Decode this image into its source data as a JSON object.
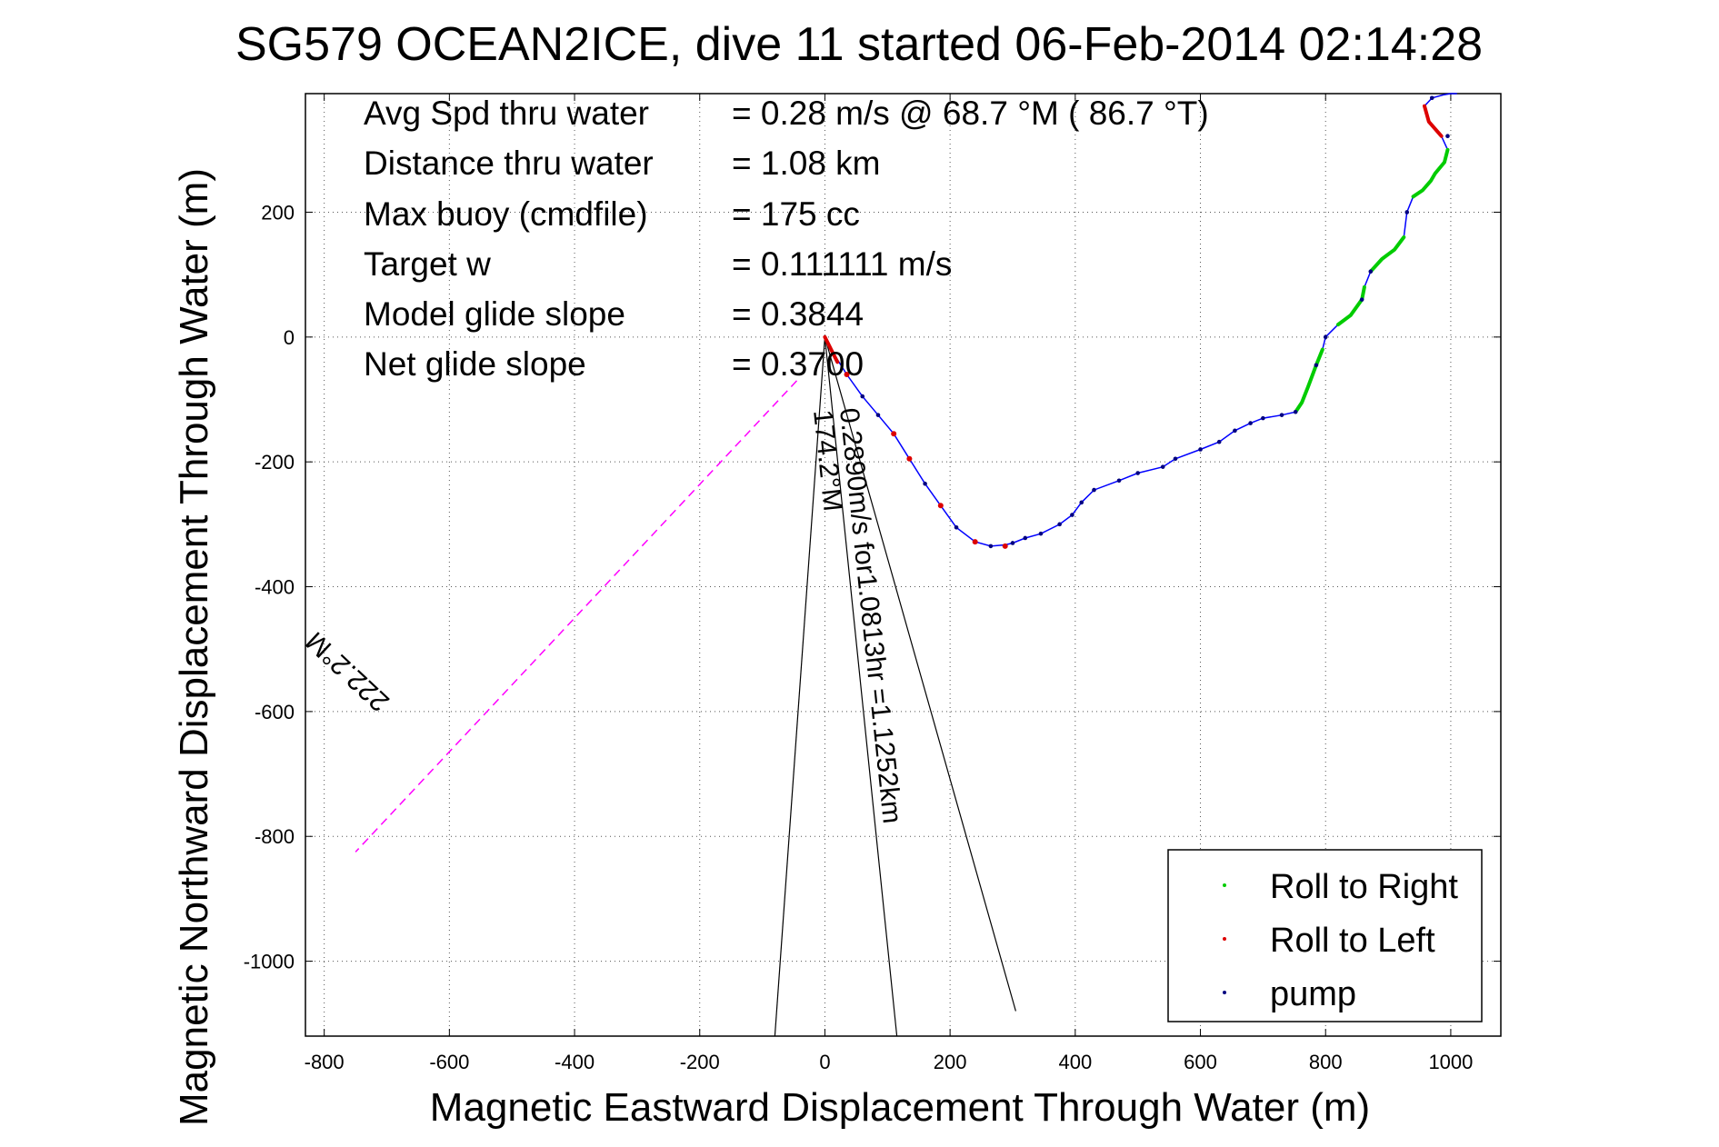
{
  "chart_data": {
    "type": "line",
    "title": "SG579 OCEAN2ICE, dive 11 started 06-Feb-2014 02:14:28",
    "xlabel": "Magnetic Eastward Displacement Through Water (m)",
    "ylabel": "Magnetic Northward Displacement Through Water (m)",
    "xlim": [
      -830,
      1080
    ],
    "ylim": [
      -1120,
      390
    ],
    "xticks": [
      -800,
      -600,
      -400,
      -200,
      0,
      200,
      400,
      600,
      800,
      1000
    ],
    "yticks": [
      -1000,
      -800,
      -600,
      -400,
      -200,
      0,
      200
    ],
    "grid": true,
    "legend_position": "bottom-right",
    "info_lines": [
      {
        "label": "Avg Spd thru water",
        "value": "=  0.28 m/s @  68.7 °M ( 86.7 °T)"
      },
      {
        "label": "Distance thru water",
        "value": "=  1.08 km"
      },
      {
        "label": "Max buoy (cmdfile)",
        "value": "= 175 cc"
      },
      {
        "label": "Target w",
        "value": "= 0.111111 m/s"
      },
      {
        "label": "Model glide slope",
        "value": "= 0.3844"
      },
      {
        "label": "Net glide slope",
        "value": "= 0.3700"
      }
    ],
    "annotations": {
      "heading_label": "222.2°M",
      "current_label": "0.2890m/s for1.0813hr =1.1252km",
      "current_heading_label": "174.2°M"
    },
    "track": {
      "name": "track",
      "color": "#0000ff",
      "x": [
        0,
        10,
        35,
        60,
        85,
        110,
        135,
        160,
        185,
        210,
        240,
        265,
        288,
        300,
        320,
        345,
        375,
        395,
        410,
        430,
        470,
        500,
        540,
        560,
        600,
        630,
        655,
        680,
        700,
        730,
        752,
        762,
        772,
        785,
        795,
        800,
        808,
        820,
        840,
        858,
        862,
        872,
        890,
        910,
        925,
        930,
        940,
        955,
        968,
        975,
        990,
        995,
        985,
        965,
        958,
        970,
        988,
        1000,
        1010
      ],
      "y": [
        0,
        -20,
        -60,
        -95,
        -125,
        -155,
        -195,
        -235,
        -270,
        -305,
        -328,
        -335,
        -333,
        -330,
        -322,
        -315,
        -300,
        -285,
        -265,
        -245,
        -230,
        -218,
        -208,
        -195,
        -180,
        -168,
        -150,
        -138,
        -130,
        -125,
        -120,
        -105,
        -80,
        -45,
        -20,
        0,
        8,
        20,
        35,
        60,
        80,
        105,
        125,
        140,
        160,
        200,
        225,
        235,
        250,
        262,
        280,
        300,
        322,
        345,
        370,
        383,
        388,
        390,
        390
      ]
    },
    "segments": [
      {
        "name": "Roll to Right",
        "color": "#00cc00",
        "x": [
          752,
          762,
          772,
          785,
          795
        ],
        "y": [
          -120,
          -105,
          -80,
          -45,
          -20
        ]
      },
      {
        "name": "Roll to Right",
        "color": "#00cc00",
        "x": [
          820,
          840,
          858,
          862
        ],
        "y": [
          20,
          35,
          60,
          80
        ]
      },
      {
        "name": "Roll to Right",
        "color": "#00cc00",
        "x": [
          872,
          890,
          910,
          925
        ],
        "y": [
          105,
          125,
          140,
          160
        ]
      },
      {
        "name": "Roll to Right",
        "color": "#00cc00",
        "x": [
          940,
          955,
          968,
          975,
          990,
          995
        ],
        "y": [
          225,
          235,
          250,
          262,
          280,
          300
        ]
      },
      {
        "name": "Roll to Left",
        "color": "#dd0000",
        "x": [
          985,
          965,
          958
        ],
        "y": [
          322,
          345,
          370
        ]
      },
      {
        "name": "Roll to Left",
        "color": "#dd0000",
        "x": [
          0,
          10,
          20
        ],
        "y": [
          0,
          -20,
          -40
        ]
      }
    ],
    "roll_left_points": {
      "x": [
        35,
        110,
        135,
        185,
        240,
        288
      ],
      "y": [
        -60,
        -155,
        -195,
        -270,
        -328,
        -335
      ]
    },
    "pump_points": {
      "x": [
        60,
        85,
        160,
        210,
        265,
        300,
        320,
        345,
        375,
        395,
        410,
        430,
        470,
        500,
        540,
        560,
        600,
        630,
        655,
        680,
        700,
        730,
        752,
        785,
        800,
        858,
        872,
        930,
        970,
        995
      ],
      "y": [
        -95,
        -125,
        -235,
        -305,
        -335,
        -330,
        -322,
        -315,
        -300,
        -285,
        -265,
        -245,
        -230,
        -218,
        -208,
        -195,
        -180,
        -168,
        -150,
        -138,
        -130,
        -125,
        -120,
        -45,
        0,
        60,
        105,
        200,
        383,
        322
      ]
    },
    "heading_line": {
      "color": "#ff00ff",
      "x": [
        -45,
        -750
      ],
      "y": [
        -70,
        -825
      ]
    },
    "current_lines": {
      "color": "#000000",
      "lines": [
        {
          "x": [
            0,
            -80
          ],
          "y": [
            0,
            -1120
          ]
        },
        {
          "x": [
            0,
            115
          ],
          "y": [
            0,
            -1120
          ]
        },
        {
          "x": [
            0,
            305
          ],
          "y": [
            0,
            -1080
          ]
        }
      ]
    },
    "legend": [
      {
        "label": "Roll to Right",
        "color": "#00cc00"
      },
      {
        "label": "Roll to Left",
        "color": "#dd0000"
      },
      {
        "label": "pump",
        "color": "#000080"
      }
    ]
  }
}
